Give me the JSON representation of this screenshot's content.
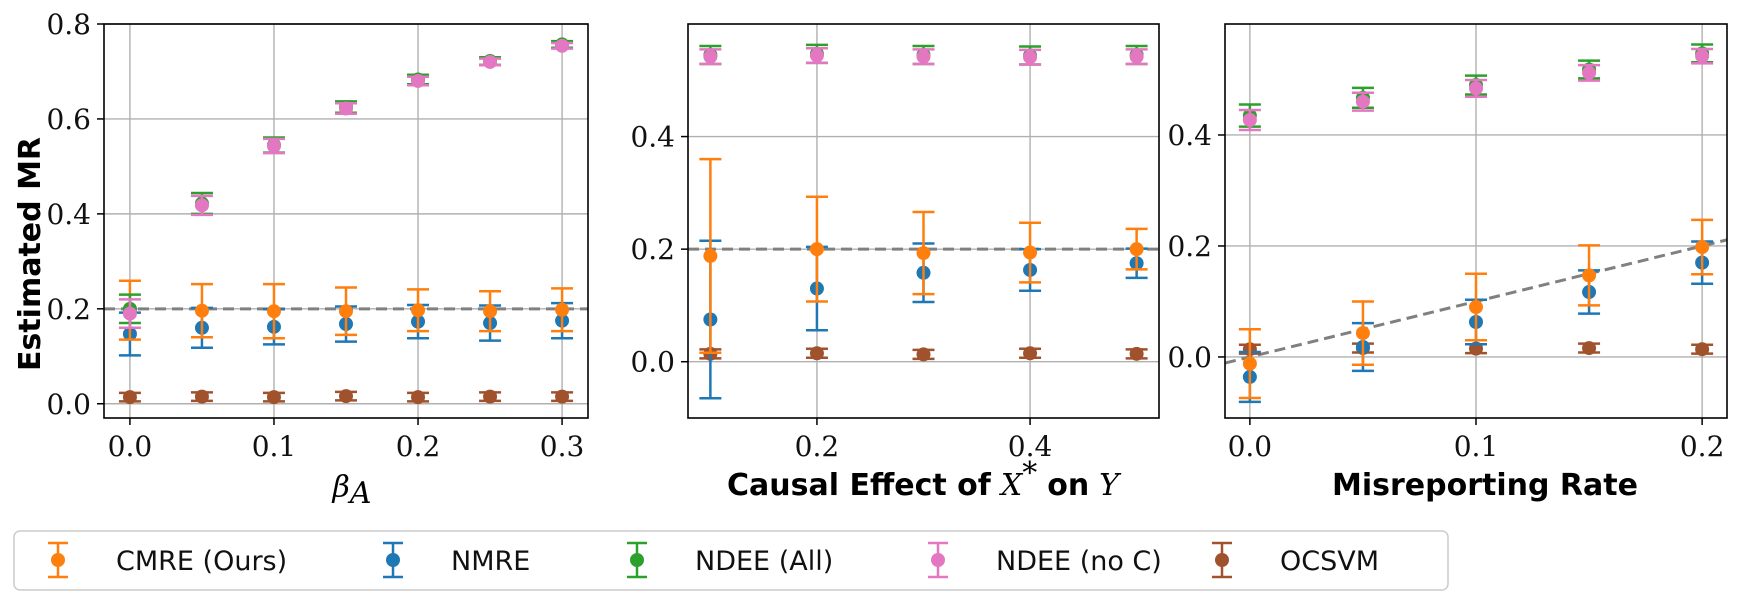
{
  "chart_data": [
    {
      "type": "scatter",
      "panel": "left",
      "ylabel": "Estimated MR",
      "xlabel": "β_A",
      "xlim": [
        -0.018,
        0.318
      ],
      "ylim": [
        -0.03,
        0.8
      ],
      "xticks": [
        "0.0",
        "0.1",
        "0.2",
        "0.3"
      ],
      "xtick_values": [
        0.0,
        0.1,
        0.2,
        0.3
      ],
      "yticks": [
        "0.0",
        "0.2",
        "0.4",
        "0.6",
        "0.8"
      ],
      "ytick_values": [
        0.0,
        0.2,
        0.4,
        0.6,
        0.8
      ],
      "grid": true,
      "reference_line": {
        "x": [
          -0.018,
          0.318
        ],
        "y": [
          0.2,
          0.2
        ]
      },
      "series": [
        {
          "name": "CMRE (Ours)",
          "color": "#ff7f0e",
          "x": [
            0.0,
            0.05,
            0.1,
            0.15,
            0.2,
            0.25,
            0.3
          ],
          "y": [
            0.197,
            0.196,
            0.195,
            0.195,
            0.197,
            0.195,
            0.198
          ],
          "err": [
            0.062,
            0.056,
            0.057,
            0.05,
            0.044,
            0.042,
            0.045
          ]
        },
        {
          "name": "NMRE",
          "color": "#1f77b4",
          "x": [
            0.0,
            0.05,
            0.1,
            0.15,
            0.2,
            0.25,
            0.3
          ],
          "y": [
            0.147,
            0.16,
            0.162,
            0.168,
            0.173,
            0.17,
            0.175
          ],
          "err": [
            0.045,
            0.042,
            0.037,
            0.037,
            0.035,
            0.037,
            0.037
          ]
        },
        {
          "name": "NDEE (All)",
          "color": "#2ca02c",
          "x": [
            0.0,
            0.05,
            0.1,
            0.15,
            0.2,
            0.25,
            0.3
          ],
          "y": [
            0.2,
            0.422,
            0.545,
            0.625,
            0.683,
            0.722,
            0.757
          ],
          "err": [
            0.03,
            0.022,
            0.016,
            0.012,
            0.01,
            0.008,
            0.007
          ]
        },
        {
          "name": "NDEE (no C)",
          "color": "#e377c2",
          "x": [
            0.0,
            0.05,
            0.1,
            0.15,
            0.2,
            0.25,
            0.3
          ],
          "y": [
            0.19,
            0.418,
            0.543,
            0.622,
            0.68,
            0.72,
            0.754
          ],
          "err": [
            0.03,
            0.02,
            0.015,
            0.011,
            0.009,
            0.007,
            0.006
          ]
        },
        {
          "name": "OCSVM",
          "color": "#a0522d",
          "x": [
            0.0,
            0.05,
            0.1,
            0.15,
            0.2,
            0.25,
            0.3
          ],
          "y": [
            0.014,
            0.015,
            0.014,
            0.016,
            0.014,
            0.015,
            0.015
          ],
          "err": [
            0.009,
            0.009,
            0.009,
            0.009,
            0.009,
            0.009,
            0.009
          ]
        }
      ]
    },
    {
      "type": "scatter",
      "panel": "middle",
      "ylabel": "",
      "xlabel": "Causal Effect of X* on Y",
      "xlim": [
        0.079,
        0.521
      ],
      "ylim": [
        -0.1,
        0.6
      ],
      "xticks": [
        "0.2",
        "0.4"
      ],
      "xtick_values": [
        0.2,
        0.4
      ],
      "yticks": [
        "0.0",
        "0.2",
        "0.4"
      ],
      "ytick_values": [
        0.0,
        0.2,
        0.4
      ],
      "grid": true,
      "reference_line": {
        "x": [
          0.079,
          0.521
        ],
        "y": [
          0.2,
          0.2
        ]
      },
      "series": [
        {
          "name": "CMRE (Ours)",
          "color": "#ff7f0e",
          "x": [
            0.1,
            0.2,
            0.3,
            0.4,
            0.5
          ],
          "y": [
            0.188,
            0.2,
            0.193,
            0.194,
            0.2
          ],
          "err": [
            0.172,
            0.093,
            0.073,
            0.053,
            0.036
          ]
        },
        {
          "name": "NMRE",
          "color": "#1f77b4",
          "x": [
            0.1,
            0.2,
            0.3,
            0.4,
            0.5
          ],
          "y": [
            0.075,
            0.13,
            0.158,
            0.163,
            0.175
          ],
          "err": [
            0.14,
            0.074,
            0.052,
            0.037,
            0.026
          ]
        },
        {
          "name": "NDEE (All)",
          "color": "#2ca02c",
          "x": [
            0.1,
            0.2,
            0.3,
            0.4,
            0.5
          ],
          "y": [
            0.545,
            0.547,
            0.545,
            0.544,
            0.545
          ],
          "err": [
            0.016,
            0.016,
            0.016,
            0.016,
            0.016
          ]
        },
        {
          "name": "NDEE (no C)",
          "color": "#e377c2",
          "x": [
            0.1,
            0.2,
            0.3,
            0.4,
            0.5
          ],
          "y": [
            0.542,
            0.544,
            0.542,
            0.541,
            0.542
          ],
          "err": [
            0.013,
            0.013,
            0.013,
            0.013,
            0.013
          ]
        },
        {
          "name": "OCSVM",
          "color": "#a0522d",
          "x": [
            0.1,
            0.2,
            0.3,
            0.4,
            0.5
          ],
          "y": [
            0.014,
            0.015,
            0.013,
            0.015,
            0.014
          ],
          "err": [
            0.008,
            0.008,
            0.008,
            0.008,
            0.008
          ]
        }
      ]
    },
    {
      "type": "scatter",
      "panel": "right",
      "ylabel": "",
      "xlabel": "Misreporting Rate",
      "xlim": [
        -0.011,
        0.211
      ],
      "ylim": [
        -0.11,
        0.6
      ],
      "xticks": [
        "0.0",
        "0.1",
        "0.2"
      ],
      "xtick_values": [
        0.0,
        0.1,
        0.2
      ],
      "yticks": [
        "0.0",
        "0.2",
        "0.4"
      ],
      "ytick_values": [
        0.0,
        0.2,
        0.4
      ],
      "grid": true,
      "reference_line": {
        "x": [
          -0.011,
          0.211
        ],
        "y": [
          -0.011,
          0.211
        ]
      },
      "series": [
        {
          "name": "CMRE (Ours)",
          "color": "#ff7f0e",
          "x": [
            0.0,
            0.05,
            0.1,
            0.15,
            0.2
          ],
          "y": [
            -0.012,
            0.043,
            0.09,
            0.147,
            0.198
          ],
          "err": [
            0.062,
            0.057,
            0.06,
            0.054,
            0.049
          ]
        },
        {
          "name": "NMRE",
          "color": "#1f77b4",
          "x": [
            0.0,
            0.05,
            0.1,
            0.15,
            0.2
          ],
          "y": [
            -0.036,
            0.018,
            0.063,
            0.117,
            0.17
          ],
          "err": [
            0.045,
            0.043,
            0.04,
            0.039,
            0.038
          ]
        },
        {
          "name": "NDEE (All)",
          "color": "#2ca02c",
          "x": [
            0.0,
            0.05,
            0.1,
            0.15,
            0.2
          ],
          "y": [
            0.435,
            0.467,
            0.49,
            0.518,
            0.547
          ],
          "err": [
            0.02,
            0.018,
            0.017,
            0.016,
            0.016
          ]
        },
        {
          "name": "NDEE (no C)",
          "color": "#e377c2",
          "x": [
            0.0,
            0.05,
            0.1,
            0.15,
            0.2
          ],
          "y": [
            0.427,
            0.46,
            0.484,
            0.512,
            0.542
          ],
          "err": [
            0.018,
            0.016,
            0.015,
            0.014,
            0.013
          ]
        },
        {
          "name": "OCSVM",
          "color": "#a0522d",
          "x": [
            0.0,
            0.05,
            0.1,
            0.15,
            0.2
          ],
          "y": [
            0.014,
            0.016,
            0.015,
            0.016,
            0.014
          ],
          "err": [
            0.008,
            0.008,
            0.008,
            0.008,
            0.008
          ]
        }
      ]
    }
  ],
  "legend": {
    "placement": "bottom",
    "items": [
      {
        "label": "CMRE (Ours)",
        "color": "#ff7f0e"
      },
      {
        "label": "NMRE",
        "color": "#1f77b4"
      },
      {
        "label": "NDEE (All)",
        "color": "#2ca02c"
      },
      {
        "label": "NDEE (no C)",
        "color": "#e377c2"
      },
      {
        "label": "OCSVM",
        "color": "#a0522d"
      }
    ]
  },
  "labels": {
    "y_axis": "Estimated MR",
    "x_left_symbol": "β",
    "x_left_subscript": "A",
    "x_mid_prefix": "Causal Effect of",
    "x_mid_var": "X",
    "x_mid_sup": "*",
    "x_mid_on": "on",
    "x_mid_target": "Y",
    "x_right": "Misreporting Rate"
  }
}
